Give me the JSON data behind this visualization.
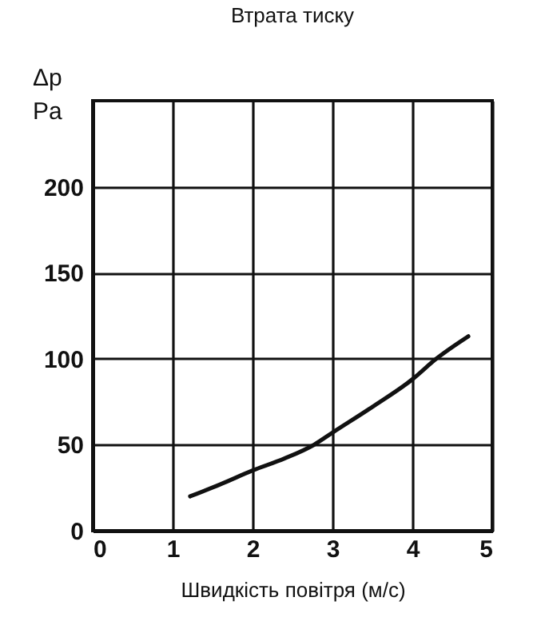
{
  "chart_data": {
    "type": "line",
    "title": "Втрата тиску",
    "xlabel": "Швидкість повітря (м/с)",
    "ylabel": "Δp\nPa",
    "x": [
      1.22,
      1.6,
      2.0,
      2.4,
      2.77,
      3.0,
      3.5,
      4.0,
      4.3,
      4.7
    ],
    "series": [
      {
        "color": "#111111",
        "values": [
          20,
          27,
          35,
          42,
          50,
          57,
          72,
          88,
          100,
          113
        ]
      }
    ],
    "xlim": [
      0,
      5
    ],
    "xticks": [
      0,
      1,
      2,
      3,
      4,
      5
    ],
    "ylim": [
      0,
      250
    ],
    "yticks": [
      0,
      50,
      100,
      150,
      200
    ],
    "grid": true,
    "marker": "none",
    "line_style": "solid"
  }
}
